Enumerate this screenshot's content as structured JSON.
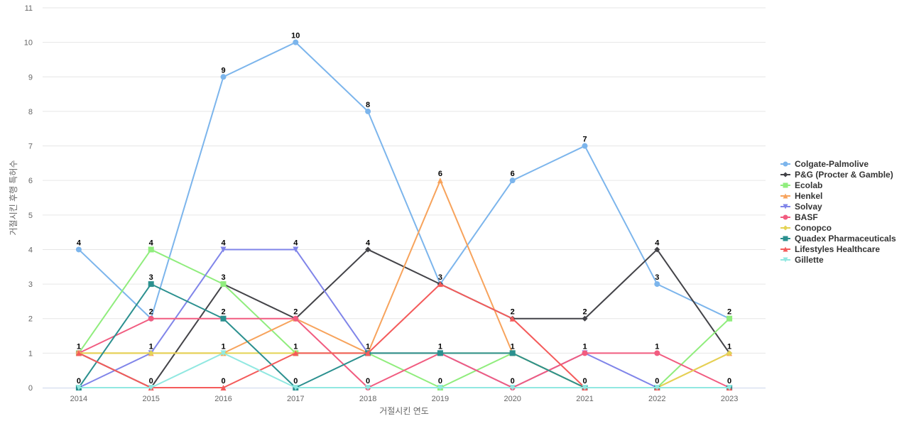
{
  "chart_data": {
    "type": "line",
    "title": "",
    "xlabel": "거절시킨 연도",
    "ylabel": "거절시킨 후행 특허수",
    "ylim": [
      0,
      11
    ],
    "grid": true,
    "legend_position": "right",
    "x": [
      "2014",
      "2015",
      "2016",
      "2017",
      "2018",
      "2019",
      "2020",
      "2021",
      "2022",
      "2023"
    ],
    "series": [
      {
        "name": "Colgate-Palmolive",
        "color": "#7cb5ec",
        "marker": "circle",
        "values": [
          4,
          2,
          9,
          10,
          8,
          3,
          6,
          7,
          3,
          2
        ]
      },
      {
        "name": "P&G (Procter & Gamble)",
        "color": "#434348",
        "marker": "diamond",
        "values": [
          1,
          0,
          3,
          2,
          4,
          3,
          2,
          2,
          4,
          1
        ]
      },
      {
        "name": "Ecolab",
        "color": "#90ed7d",
        "marker": "square",
        "values": [
          1,
          4,
          3,
          1,
          1,
          0,
          1,
          0,
          0,
          2
        ]
      },
      {
        "name": "Henkel",
        "color": "#f7a35c",
        "marker": "triangle",
        "values": [
          1,
          1,
          1,
          2,
          1,
          6,
          1,
          0,
          0,
          1
        ]
      },
      {
        "name": "Solvay",
        "color": "#8085e9",
        "marker": "triangle-down",
        "values": [
          0,
          1,
          4,
          4,
          1,
          1,
          0,
          1,
          0,
          0
        ]
      },
      {
        "name": "BASF",
        "color": "#f15c80",
        "marker": "circle",
        "values": [
          1,
          2,
          2,
          2,
          0,
          1,
          0,
          1,
          1,
          0
        ]
      },
      {
        "name": "Conopco",
        "color": "#e4d354",
        "marker": "diamond",
        "values": [
          1,
          1,
          1,
          1,
          1,
          1,
          1,
          0,
          0,
          1
        ]
      },
      {
        "name": "Quadex Pharmaceuticals",
        "color": "#2b908f",
        "marker": "square",
        "values": [
          0,
          3,
          2,
          0,
          1,
          1,
          1,
          0,
          0,
          0
        ]
      },
      {
        "name": "Lifestyles Healthcare",
        "color": "#f45b5b",
        "marker": "triangle",
        "values": [
          1,
          0,
          0,
          1,
          1,
          3,
          2,
          0,
          0,
          0
        ]
      },
      {
        "name": "Gillette",
        "color": "#91e8e1",
        "marker": "triangle-down",
        "values": [
          0,
          0,
          1,
          0,
          0,
          0,
          0,
          0,
          0,
          0
        ]
      }
    ],
    "data_labels": [
      {
        "x": "2014",
        "value": 4
      },
      {
        "x": "2014",
        "value": 1
      },
      {
        "x": "2014",
        "value": 0
      },
      {
        "x": "2015",
        "value": 4
      },
      {
        "x": "2015",
        "value": 3
      },
      {
        "x": "2015",
        "value": 2
      },
      {
        "x": "2015",
        "value": 1
      },
      {
        "x": "2015",
        "value": 0
      },
      {
        "x": "2016",
        "value": 9
      },
      {
        "x": "2016",
        "value": 4
      },
      {
        "x": "2016",
        "value": 3
      },
      {
        "x": "2016",
        "value": 2
      },
      {
        "x": "2016",
        "value": 1
      },
      {
        "x": "2016",
        "value": 0
      },
      {
        "x": "2017",
        "value": 10
      },
      {
        "x": "2017",
        "value": 4
      },
      {
        "x": "2017",
        "value": 2
      },
      {
        "x": "2017",
        "value": 1
      },
      {
        "x": "2017",
        "value": 0
      },
      {
        "x": "2018",
        "value": 8
      },
      {
        "x": "2018",
        "value": 4
      },
      {
        "x": "2018",
        "value": 1
      },
      {
        "x": "2018",
        "value": 0
      },
      {
        "x": "2019",
        "value": 6
      },
      {
        "x": "2019",
        "value": 3
      },
      {
        "x": "2019",
        "value": 1
      },
      {
        "x": "2019",
        "value": 0
      },
      {
        "x": "2020",
        "value": 6
      },
      {
        "x": "2020",
        "value": 2
      },
      {
        "x": "2020",
        "value": 1
      },
      {
        "x": "2020",
        "value": 0
      },
      {
        "x": "2021",
        "value": 7
      },
      {
        "x": "2021",
        "value": 2
      },
      {
        "x": "2021",
        "value": 1
      },
      {
        "x": "2021",
        "value": 0
      },
      {
        "x": "2022",
        "value": 4
      },
      {
        "x": "2022",
        "value": 3
      },
      {
        "x": "2022",
        "value": 1
      },
      {
        "x": "2022",
        "value": 0
      },
      {
        "x": "2023",
        "value": 2
      },
      {
        "x": "2023",
        "value": 1
      },
      {
        "x": "2023",
        "value": 0
      }
    ]
  }
}
